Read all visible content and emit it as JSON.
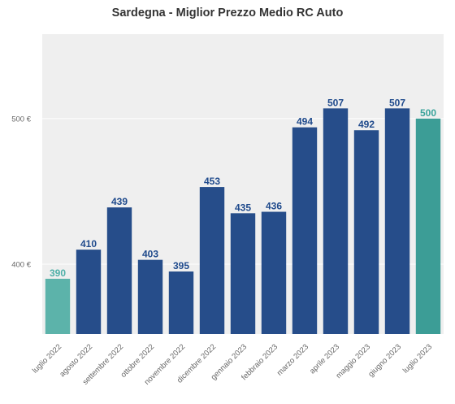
{
  "chart_data": {
    "type": "bar",
    "title": "Sardegna - Miglior Prezzo Medio RC Auto",
    "categories": [
      "luglio 2022",
      "agosto 2022",
      "settembre 2022",
      "ottobre 2022",
      "novembre 2022",
      "dicembre 2022",
      "gennaio 2023",
      "febbraio 2023",
      "marzo 2023",
      "aprile 2023",
      "maggio 2023",
      "giugno 2023",
      "luglio 2023"
    ],
    "values": [
      390,
      410,
      439,
      403,
      395,
      453,
      435,
      436,
      494,
      507,
      492,
      507,
      500
    ],
    "bar_colors": [
      "#5cb3aa",
      "#264d8a",
      "#264d8a",
      "#264d8a",
      "#264d8a",
      "#264d8a",
      "#264d8a",
      "#264d8a",
      "#264d8a",
      "#264d8a",
      "#264d8a",
      "#264d8a",
      "#3c9d96"
    ],
    "label_colors": [
      "#4fb0a8",
      "#1f4a8c",
      "#1f4a8c",
      "#1f4a8c",
      "#1f4a8c",
      "#1f4a8c",
      "#1f4a8c",
      "#1f4a8c",
      "#1f4a8c",
      "#1f4a8c",
      "#1f4a8c",
      "#1f4a8c",
      "#3aa39b"
    ],
    "yticks": [
      400,
      500
    ],
    "ytick_labels": [
      "400 €",
      "500 €"
    ],
    "ylim": [
      352,
      558
    ],
    "xlabel": "",
    "ylabel": "",
    "grid": true,
    "background": "#efefef"
  }
}
